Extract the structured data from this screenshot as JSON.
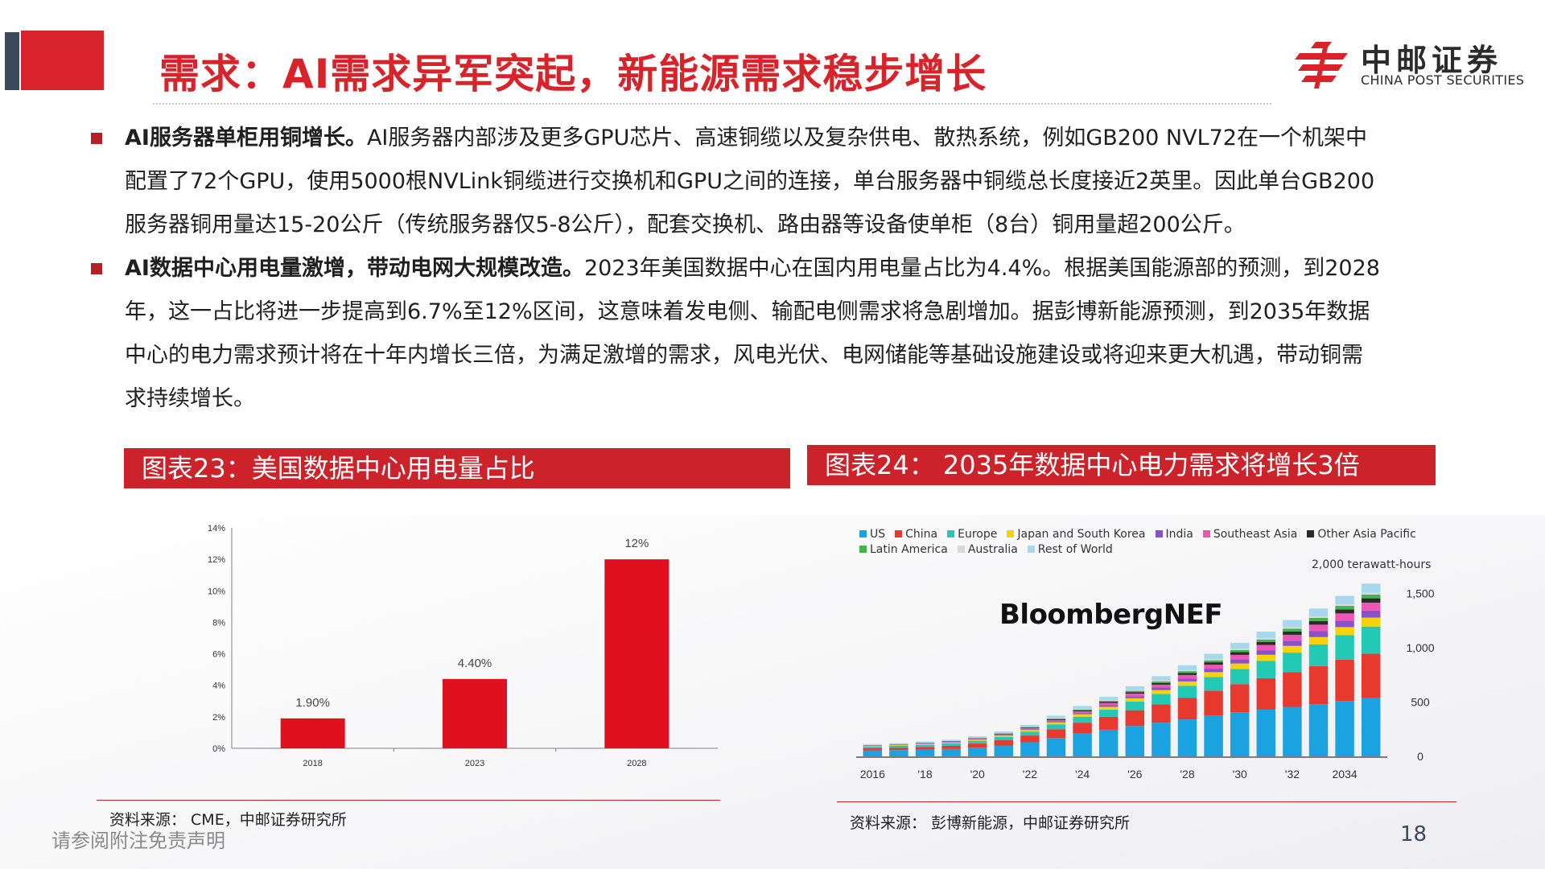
{
  "header": {
    "title": "需求：AI需求异军突起，新能源需求稳步增长",
    "logo_cn": "中邮证券",
    "logo_en": "CHINA POST SECURITIES"
  },
  "paragraphs": [
    {
      "lead": "AI服务器单柜用铜增长。",
      "lines": [
        "AI服务器内部涉及更多GPU芯片、高速铜缆以及复杂供电、散热系统，例如GB200 NVL72在一个机架中",
        "配置了72个GPU，使用5000根NVLink铜缆进行交换机和GPU之间的连接，单台服务器中铜缆总长度接近2英里。因此单台GB200",
        "服务器铜用量达15-20公斤（传统服务器仅5-8公斤），配套交换机、路由器等设备使单柜（8台）铜用量超200公斤。"
      ]
    },
    {
      "lead": "AI数据中心用电量激增，带动电网大规模改造。",
      "lines": [
        "2023年美国数据中心在国内用电量占比为4.4%。根据美国能源部的预测，到2028",
        "年，这一占比将进一步提高到6.7%至12%区间，这意味着发电侧、输配电侧需求将急剧增加。据彭博新能源预测，到2035年数据",
        "中心的电力需求预计将在十年内增长三倍，为满足激增的需求，风电光伏、电网储能等基础设施建设或将迎来更大机遇，带动铜需",
        "求持续增长。"
      ]
    }
  ],
  "figure23": {
    "header": "图表23：美国数据中心用电量占比",
    "source": "资料来源：  CME，中邮证券研究所"
  },
  "figure24": {
    "header": "图表24：   2035年数据中心电力需求将增长3倍",
    "source": "资料来源：   彭博新能源，中邮证券研究所",
    "watermark": "BloombergNEF",
    "unit_label": "2,000 terawatt-hours"
  },
  "footer": {
    "disclaimer": "请参阅附注免责声明",
    "page": "18"
  },
  "chart_data": [
    {
      "type": "bar",
      "categories": [
        "2018",
        "2023",
        "2028"
      ],
      "values": [
        1.9,
        4.4,
        12
      ],
      "data_labels": [
        "1.90%",
        "4.40%",
        "12%"
      ],
      "yticks": [
        "0%",
        "2%",
        "4%",
        "6%",
        "8%",
        "10%",
        "12%",
        "14%"
      ],
      "ylim": [
        0,
        14
      ],
      "color": "#e0101e",
      "grid": false
    },
    {
      "type": "bar",
      "stacked": true,
      "x": [
        2016,
        2017,
        2018,
        2019,
        2020,
        2021,
        2022,
        2023,
        2024,
        2025,
        2026,
        2027,
        2028,
        2029,
        2030,
        2031,
        2032,
        2033,
        2034,
        2035
      ],
      "xticks": [
        "2016",
        "'18",
        "'20",
        "'22",
        "'24",
        "'26",
        "'28",
        "'30",
        "'32",
        "2034"
      ],
      "yticks": [
        "0",
        "500",
        "1,000",
        "1,500"
      ],
      "ylim": [
        0,
        2000
      ],
      "legend_position": "top-left",
      "series": [
        {
          "name": "US",
          "color": "#1aa3e0",
          "values": [
            55,
            58,
            62,
            68,
            80,
            100,
            130,
            170,
            210,
            245,
            280,
            310,
            340,
            375,
            405,
            430,
            455,
            480,
            510,
            535
          ]
        },
        {
          "name": "China",
          "color": "#e8392f",
          "values": [
            20,
            22,
            25,
            30,
            38,
            48,
            62,
            80,
            100,
            120,
            145,
            170,
            200,
            230,
            260,
            290,
            320,
            350,
            380,
            410
          ]
        },
        {
          "name": "Europe",
          "color": "#22c9b4",
          "values": [
            15,
            17,
            19,
            21,
            25,
            30,
            36,
            45,
            55,
            65,
            80,
            95,
            110,
            125,
            140,
            160,
            180,
            200,
            225,
            250
          ]
        },
        {
          "name": "Japan and South Korea",
          "color": "#f5d20c",
          "values": [
            5,
            6,
            7,
            8,
            10,
            12,
            15,
            18,
            22,
            26,
            30,
            35,
            40,
            45,
            50,
            55,
            62,
            68,
            75,
            82
          ]
        },
        {
          "name": "India",
          "color": "#8a52c9",
          "values": [
            2,
            2,
            3,
            3,
            4,
            5,
            7,
            9,
            12,
            15,
            19,
            23,
            27,
            32,
            37,
            42,
            48,
            54,
            60,
            66
          ]
        },
        {
          "name": "Southeast Asia",
          "color": "#ee55b6",
          "values": [
            3,
            3,
            4,
            4,
            5,
            7,
            9,
            12,
            15,
            19,
            23,
            27,
            32,
            37,
            42,
            48,
            54,
            60,
            66,
            72
          ]
        },
        {
          "name": "Other Asia Pacific",
          "color": "#2b2b2b",
          "values": [
            2,
            2,
            3,
            3,
            4,
            5,
            6,
            8,
            10,
            12,
            14,
            16,
            19,
            22,
            25,
            28,
            31,
            34,
            37,
            40
          ]
        },
        {
          "name": "Latin America",
          "color": "#3fb54a",
          "values": [
            2,
            2,
            2,
            3,
            3,
            4,
            5,
            6,
            8,
            10,
            12,
            14,
            16,
            18,
            20,
            23,
            26,
            29,
            32,
            35
          ]
        },
        {
          "name": "Australia",
          "color": "#d9d9d9",
          "values": [
            1,
            1,
            1,
            2,
            2,
            3,
            3,
            4,
            5,
            6,
            7,
            8,
            9,
            10,
            11,
            12,
            13,
            14,
            15,
            16
          ]
        },
        {
          "name": "Rest of World",
          "color": "#a8d8ee",
          "values": [
            8,
            9,
            10,
            11,
            13,
            15,
            18,
            22,
            26,
            30,
            35,
            40,
            45,
            50,
            55,
            60,
            66,
            72,
            78,
            84
          ]
        }
      ]
    }
  ]
}
